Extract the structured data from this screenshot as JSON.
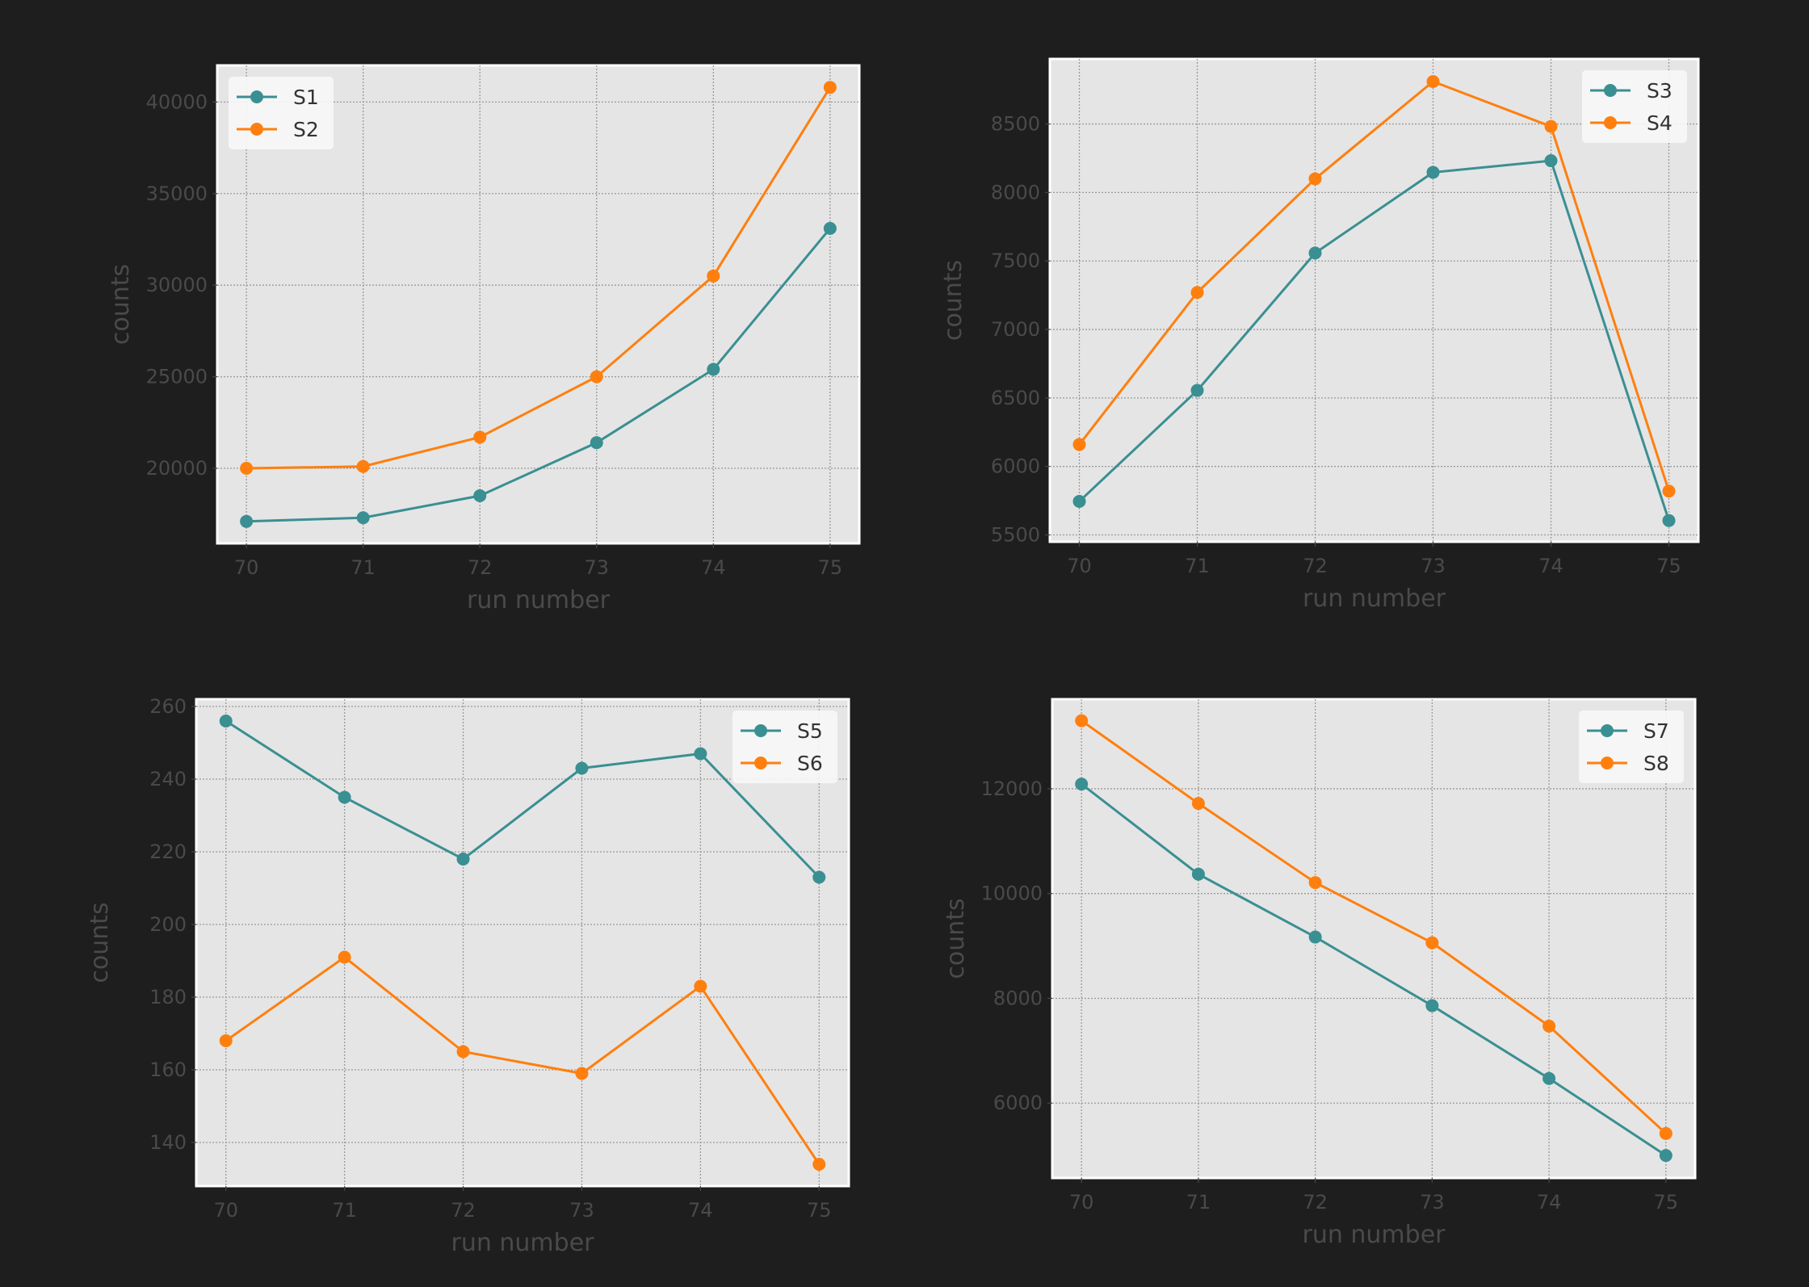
{
  "colors": {
    "background": "#1e1e1e",
    "axes_face": "#e5e5e5",
    "grid": "#9a9a9a",
    "series_a": "#3a8f92",
    "series_b": "#ff7f0e"
  },
  "chart_data": [
    {
      "type": "line",
      "xlabel": "run number",
      "ylabel": "counts",
      "x": [
        70,
        71,
        72,
        73,
        74,
        75
      ],
      "xlim": [
        69.75,
        75.25
      ],
      "ylim": [
        15900,
        42000
      ],
      "yticks": [
        20000,
        25000,
        30000,
        35000,
        40000
      ],
      "grid": true,
      "legend": "top-left",
      "series": [
        {
          "name": "S1",
          "values": [
            17100,
            17300,
            18500,
            21400,
            25400,
            33100
          ]
        },
        {
          "name": "S2",
          "values": [
            20000,
            20100,
            21700,
            25000,
            30500,
            40800
          ]
        }
      ]
    },
    {
      "type": "line",
      "xlabel": "run number",
      "ylabel": "counts",
      "x": [
        70,
        71,
        72,
        73,
        74,
        75
      ],
      "xlim": [
        69.75,
        75.25
      ],
      "ylim": [
        5450,
        8975
      ],
      "yticks": [
        5500,
        6000,
        6500,
        7000,
        7500,
        8000,
        8500
      ],
      "grid": true,
      "legend": "top-right",
      "series": [
        {
          "name": "S3",
          "values": [
            5745,
            6555,
            7558,
            8147,
            8232,
            5605
          ]
        },
        {
          "name": "S4",
          "values": [
            6160,
            7270,
            8100,
            8810,
            8482,
            5820
          ]
        }
      ]
    },
    {
      "type": "line",
      "xlabel": "run number",
      "ylabel": "counts",
      "x": [
        70,
        71,
        72,
        73,
        74,
        75
      ],
      "xlim": [
        69.75,
        75.25
      ],
      "ylim": [
        128,
        262
      ],
      "yticks": [
        140,
        160,
        180,
        200,
        220,
        240,
        260
      ],
      "grid": true,
      "legend": "top-right",
      "series": [
        {
          "name": "S5",
          "values": [
            256,
            235,
            218,
            243,
            247,
            213
          ]
        },
        {
          "name": "S6",
          "values": [
            168,
            191,
            165,
            159,
            183,
            134
          ]
        }
      ]
    },
    {
      "type": "line",
      "xlabel": "run number",
      "ylabel": "counts",
      "x": [
        70,
        71,
        72,
        73,
        74,
        75
      ],
      "xlim": [
        69.75,
        75.25
      ],
      "ylim": [
        4570,
        13710
      ],
      "yticks": [
        6000,
        8000,
        10000,
        12000
      ],
      "grid": true,
      "legend": "top-right",
      "series": [
        {
          "name": "S7",
          "values": [
            12090,
            10370,
            9170,
            7860,
            6470,
            5000
          ]
        },
        {
          "name": "S8",
          "values": [
            13300,
            11720,
            10210,
            9060,
            7470,
            5420
          ]
        }
      ]
    }
  ]
}
